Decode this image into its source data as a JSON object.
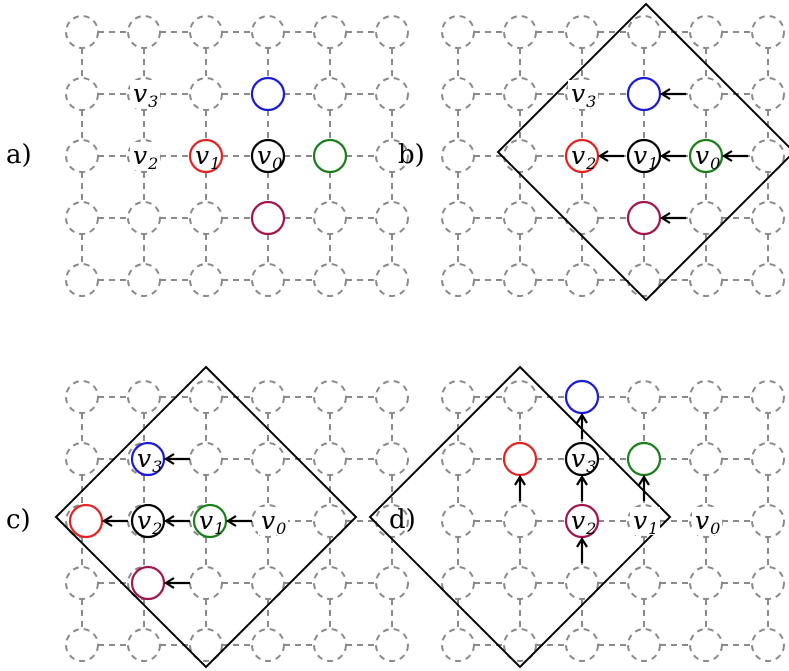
{
  "colors": {
    "black": "#000000",
    "red": "#e52222",
    "blue": "#1b1bd6",
    "green": "#1a7f1a",
    "purple": "#a3154f",
    "lattice": "#8a8a8a"
  },
  "panels": [
    {
      "id": "a",
      "label": "a)",
      "diamond": false,
      "circles": [
        {
          "color": "blue",
          "col": 3,
          "row": 1
        },
        {
          "color": "red",
          "col": 2,
          "row": 2,
          "text": "v",
          "sub": "1"
        },
        {
          "color": "black",
          "col": 3,
          "row": 2,
          "text": "v",
          "sub": "0"
        },
        {
          "color": "green",
          "col": 4,
          "row": 2
        },
        {
          "color": "purple",
          "col": 3,
          "row": 3
        }
      ],
      "texts": [
        {
          "col": 1,
          "row": 1,
          "text": "v",
          "sub": "3"
        },
        {
          "col": 1,
          "row": 2,
          "text": "v",
          "sub": "2"
        }
      ],
      "arrows": []
    },
    {
      "id": "b",
      "label": "b)",
      "diamond": true,
      "circles": [
        {
          "color": "blue",
          "col": 2,
          "row": 1
        },
        {
          "color": "red",
          "col": 1,
          "row": 2,
          "text": "v",
          "sub": "2"
        },
        {
          "color": "black",
          "col": 2,
          "row": 2,
          "text": "v",
          "sub": "1"
        },
        {
          "color": "green",
          "col": 3,
          "row": 2,
          "text": "v",
          "sub": "0"
        },
        {
          "color": "purple",
          "col": 2,
          "row": 3
        }
      ],
      "texts": [
        {
          "col": 1,
          "row": 1,
          "text": "v",
          "sub": "3"
        }
      ],
      "arrows": [
        "left",
        "left",
        "left",
        "left",
        "left"
      ]
    },
    {
      "id": "c",
      "label": "c)",
      "diamond": true,
      "circles": [
        {
          "color": "blue",
          "col": 1,
          "row": 1,
          "text": "v",
          "sub": "3"
        },
        {
          "color": "red",
          "col": 0,
          "row": 2
        },
        {
          "color": "black",
          "col": 1,
          "row": 2,
          "text": "v",
          "sub": "2"
        },
        {
          "color": "green",
          "col": 2,
          "row": 2,
          "text": "v",
          "sub": "1"
        },
        {
          "color": "purple",
          "col": 1,
          "row": 3
        }
      ],
      "texts": [
        {
          "col": 3,
          "row": 2,
          "text": "v",
          "sub": "0"
        }
      ],
      "arrows": [
        "left",
        "left",
        "left",
        "left",
        "left"
      ]
    },
    {
      "id": "d",
      "label": "d)",
      "diamond": true,
      "circles": [
        {
          "color": "blue",
          "col": 2,
          "row": 0
        },
        {
          "color": "red",
          "col": 1,
          "row": 1
        },
        {
          "color": "black",
          "col": 2,
          "row": 1,
          "text": "v",
          "sub": "3"
        },
        {
          "color": "green",
          "col": 3,
          "row": 1
        },
        {
          "color": "purple",
          "col": 2,
          "row": 2,
          "text": "v",
          "sub": "2"
        }
      ],
      "texts": [
        {
          "col": 3,
          "row": 2,
          "text": "v",
          "sub": "1"
        },
        {
          "col": 4,
          "row": 2,
          "text": "v",
          "sub": "0"
        }
      ],
      "arrows": [
        "up",
        "up",
        "up",
        "up",
        "up"
      ]
    }
  ]
}
